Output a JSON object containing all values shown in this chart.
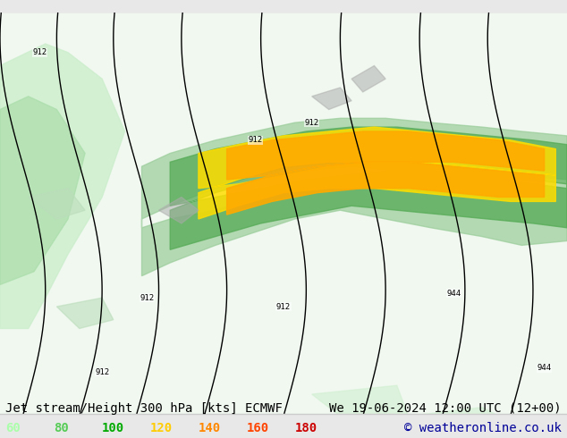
{
  "title_left": "Jet stream/Height 300 hPa [kts] ECMWF",
  "title_right": "We 19-06-2024 12:00 UTC (12+00)",
  "copyright": "© weatheronline.co.uk",
  "legend_values": [
    60,
    80,
    100,
    120,
    140,
    160,
    180
  ],
  "legend_colors": [
    "#aaffaa",
    "#55cc55",
    "#00aa00",
    "#ffcc00",
    "#ff8800",
    "#ff4400",
    "#cc0000"
  ],
  "bg_color": "#e8e8e8",
  "map_bg": "#f0f0f0",
  "contour_color": "#000000",
  "label_fontsize": 10,
  "legend_fontsize": 11,
  "copyright_color": "#000099",
  "title_fontsize": 10,
  "figsize": [
    6.34,
    4.9
  ],
  "dpi": 100
}
